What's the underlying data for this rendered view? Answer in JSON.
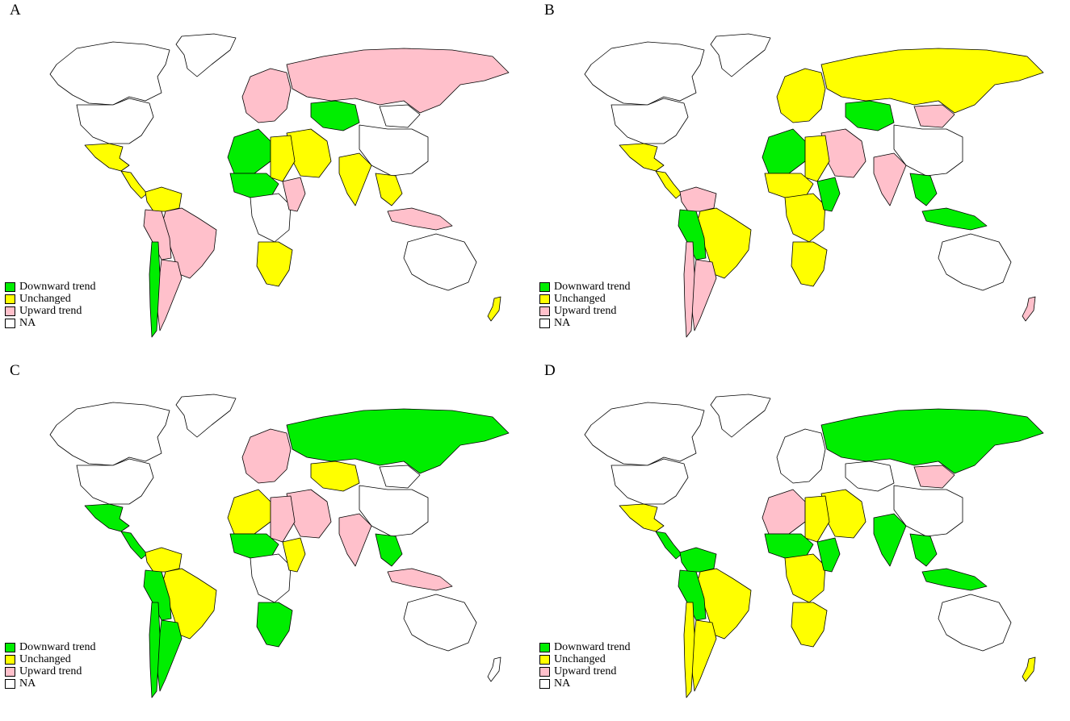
{
  "colors": {
    "downward": "#00ee00",
    "unchanged": "#ffff00",
    "upward": "#ffc0cb",
    "na": "#ffffff"
  },
  "legend": [
    {
      "label": "Downward trend",
      "key": "downward"
    },
    {
      "label": "Unchanged",
      "key": "unchanged"
    },
    {
      "label": "Upward trend",
      "key": "upward"
    },
    {
      "label": "NA",
      "key": "na"
    }
  ],
  "panels": [
    {
      "id": "A",
      "label": "A",
      "regions": {
        "greenland": "na",
        "north_america": "na",
        "usa": "na",
        "mexico": "unchanged",
        "central_america": "unchanged",
        "colombia_venezuela": "unchanged",
        "brazil": "upward",
        "peru_bolivia": "upward",
        "argentina": "upward",
        "chile": "downward",
        "western_europe": "upward",
        "russia": "upward",
        "kazakhstan": "downward",
        "mongolia": "na",
        "china": "na",
        "india": "unchanged",
        "middle_east": "unchanged",
        "north_africa_west": "downward",
        "north_africa_east": "unchanged",
        "sahel": "downward",
        "central_africa": "na",
        "east_africa": "upward",
        "southern_africa": "unchanged",
        "se_asia": "unchanged",
        "indonesia": "upward",
        "australia": "na",
        "new_zealand": "unchanged"
      }
    },
    {
      "id": "B",
      "label": "B",
      "regions": {
        "greenland": "na",
        "north_america": "na",
        "usa": "na",
        "mexico": "unchanged",
        "central_america": "unchanged",
        "colombia_venezuela": "upward",
        "brazil": "unchanged",
        "peru_bolivia": "downward",
        "argentina": "upward",
        "chile": "upward",
        "western_europe": "unchanged",
        "russia": "unchanged",
        "kazakhstan": "downward",
        "mongolia": "upward",
        "china": "na",
        "india": "upward",
        "middle_east": "upward",
        "north_africa_west": "downward",
        "north_africa_east": "unchanged",
        "sahel": "unchanged",
        "central_africa": "unchanged",
        "east_africa": "downward",
        "southern_africa": "unchanged",
        "se_asia": "downward",
        "indonesia": "downward",
        "australia": "na",
        "new_zealand": "upward"
      }
    },
    {
      "id": "C",
      "label": "C",
      "regions": {
        "greenland": "na",
        "north_america": "na",
        "usa": "na",
        "mexico": "downward",
        "central_america": "downward",
        "colombia_venezuela": "unchanged",
        "brazil": "unchanged",
        "peru_bolivia": "downward",
        "argentina": "downward",
        "chile": "downward",
        "western_europe": "upward",
        "russia": "downward",
        "kazakhstan": "unchanged",
        "mongolia": "na",
        "china": "na",
        "india": "upward",
        "middle_east": "upward",
        "north_africa_west": "unchanged",
        "north_africa_east": "upward",
        "sahel": "downward",
        "central_africa": "na",
        "east_africa": "unchanged",
        "southern_africa": "downward",
        "se_asia": "downward",
        "indonesia": "upward",
        "australia": "na",
        "new_zealand": "na"
      }
    },
    {
      "id": "D",
      "label": "D",
      "regions": {
        "greenland": "na",
        "north_america": "na",
        "usa": "na",
        "mexico": "unchanged",
        "central_america": "downward",
        "colombia_venezuela": "downward",
        "brazil": "unchanged",
        "peru_bolivia": "downward",
        "argentina": "unchanged",
        "chile": "unchanged",
        "western_europe": "na",
        "russia": "downward",
        "kazakhstan": "na",
        "mongolia": "upward",
        "china": "na",
        "india": "downward",
        "middle_east": "unchanged",
        "north_africa_west": "upward",
        "north_africa_east": "unchanged",
        "sahel": "downward",
        "central_africa": "unchanged",
        "east_africa": "downward",
        "southern_africa": "unchanged",
        "se_asia": "downward",
        "indonesia": "downward",
        "australia": "na",
        "new_zealand": "unchanged"
      }
    }
  ]
}
